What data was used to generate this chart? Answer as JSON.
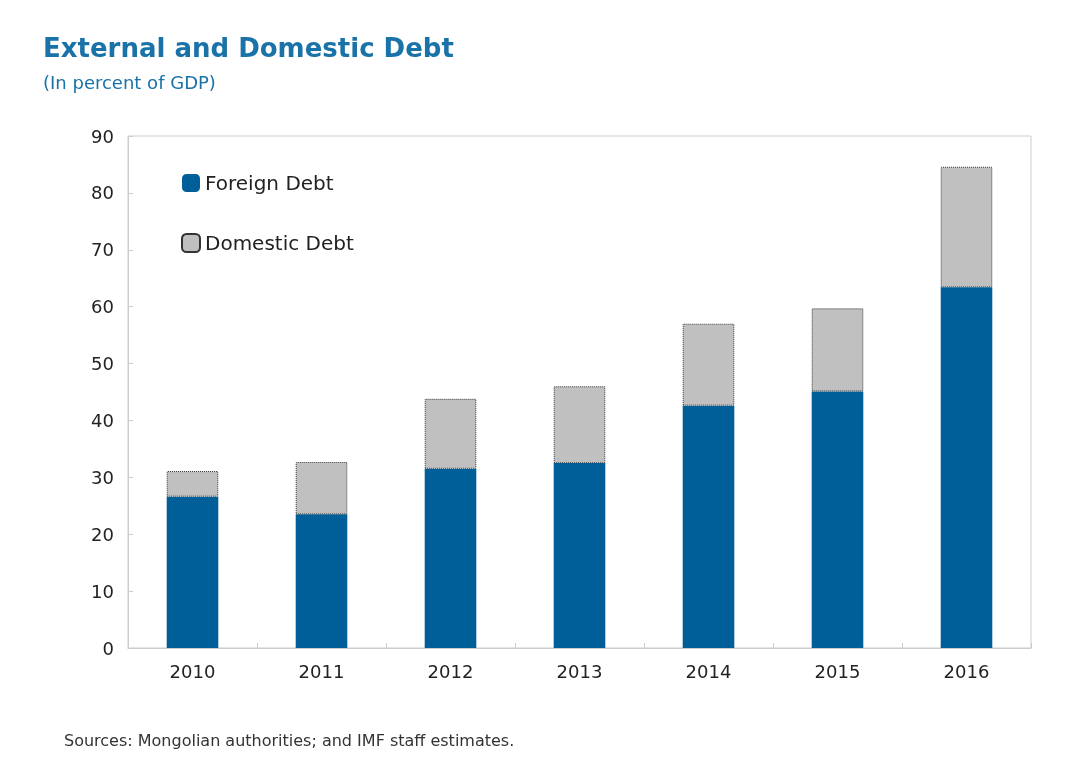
{
  "chart_data": {
    "type": "bar",
    "title": "External and Domestic Debt",
    "subtitle": "(In percent of GDP)",
    "categories": [
      "2010",
      "2011",
      "2012",
      "2013",
      "2014",
      "2015",
      "2016"
    ],
    "stacked": true,
    "series": [
      {
        "name": "Foreign Debt",
        "color": "#005f99",
        "values": [
          26.6,
          23.5,
          31.5,
          32.5,
          42.6,
          45.1,
          63.4
        ]
      },
      {
        "name": "Domestic Debt",
        "color": "#c0c0c0",
        "values": [
          4.5,
          9.2,
          12.3,
          13.5,
          14.4,
          14.6,
          21.2
        ]
      }
    ],
    "ylim": [
      0,
      90
    ],
    "yticks": [
      0,
      10,
      20,
      30,
      40,
      50,
      60,
      70,
      80,
      90
    ],
    "grid": false,
    "legend": "top left",
    "annotations": [
      "Sources: Mongolian authorities; and IMF staff estimates."
    ]
  }
}
